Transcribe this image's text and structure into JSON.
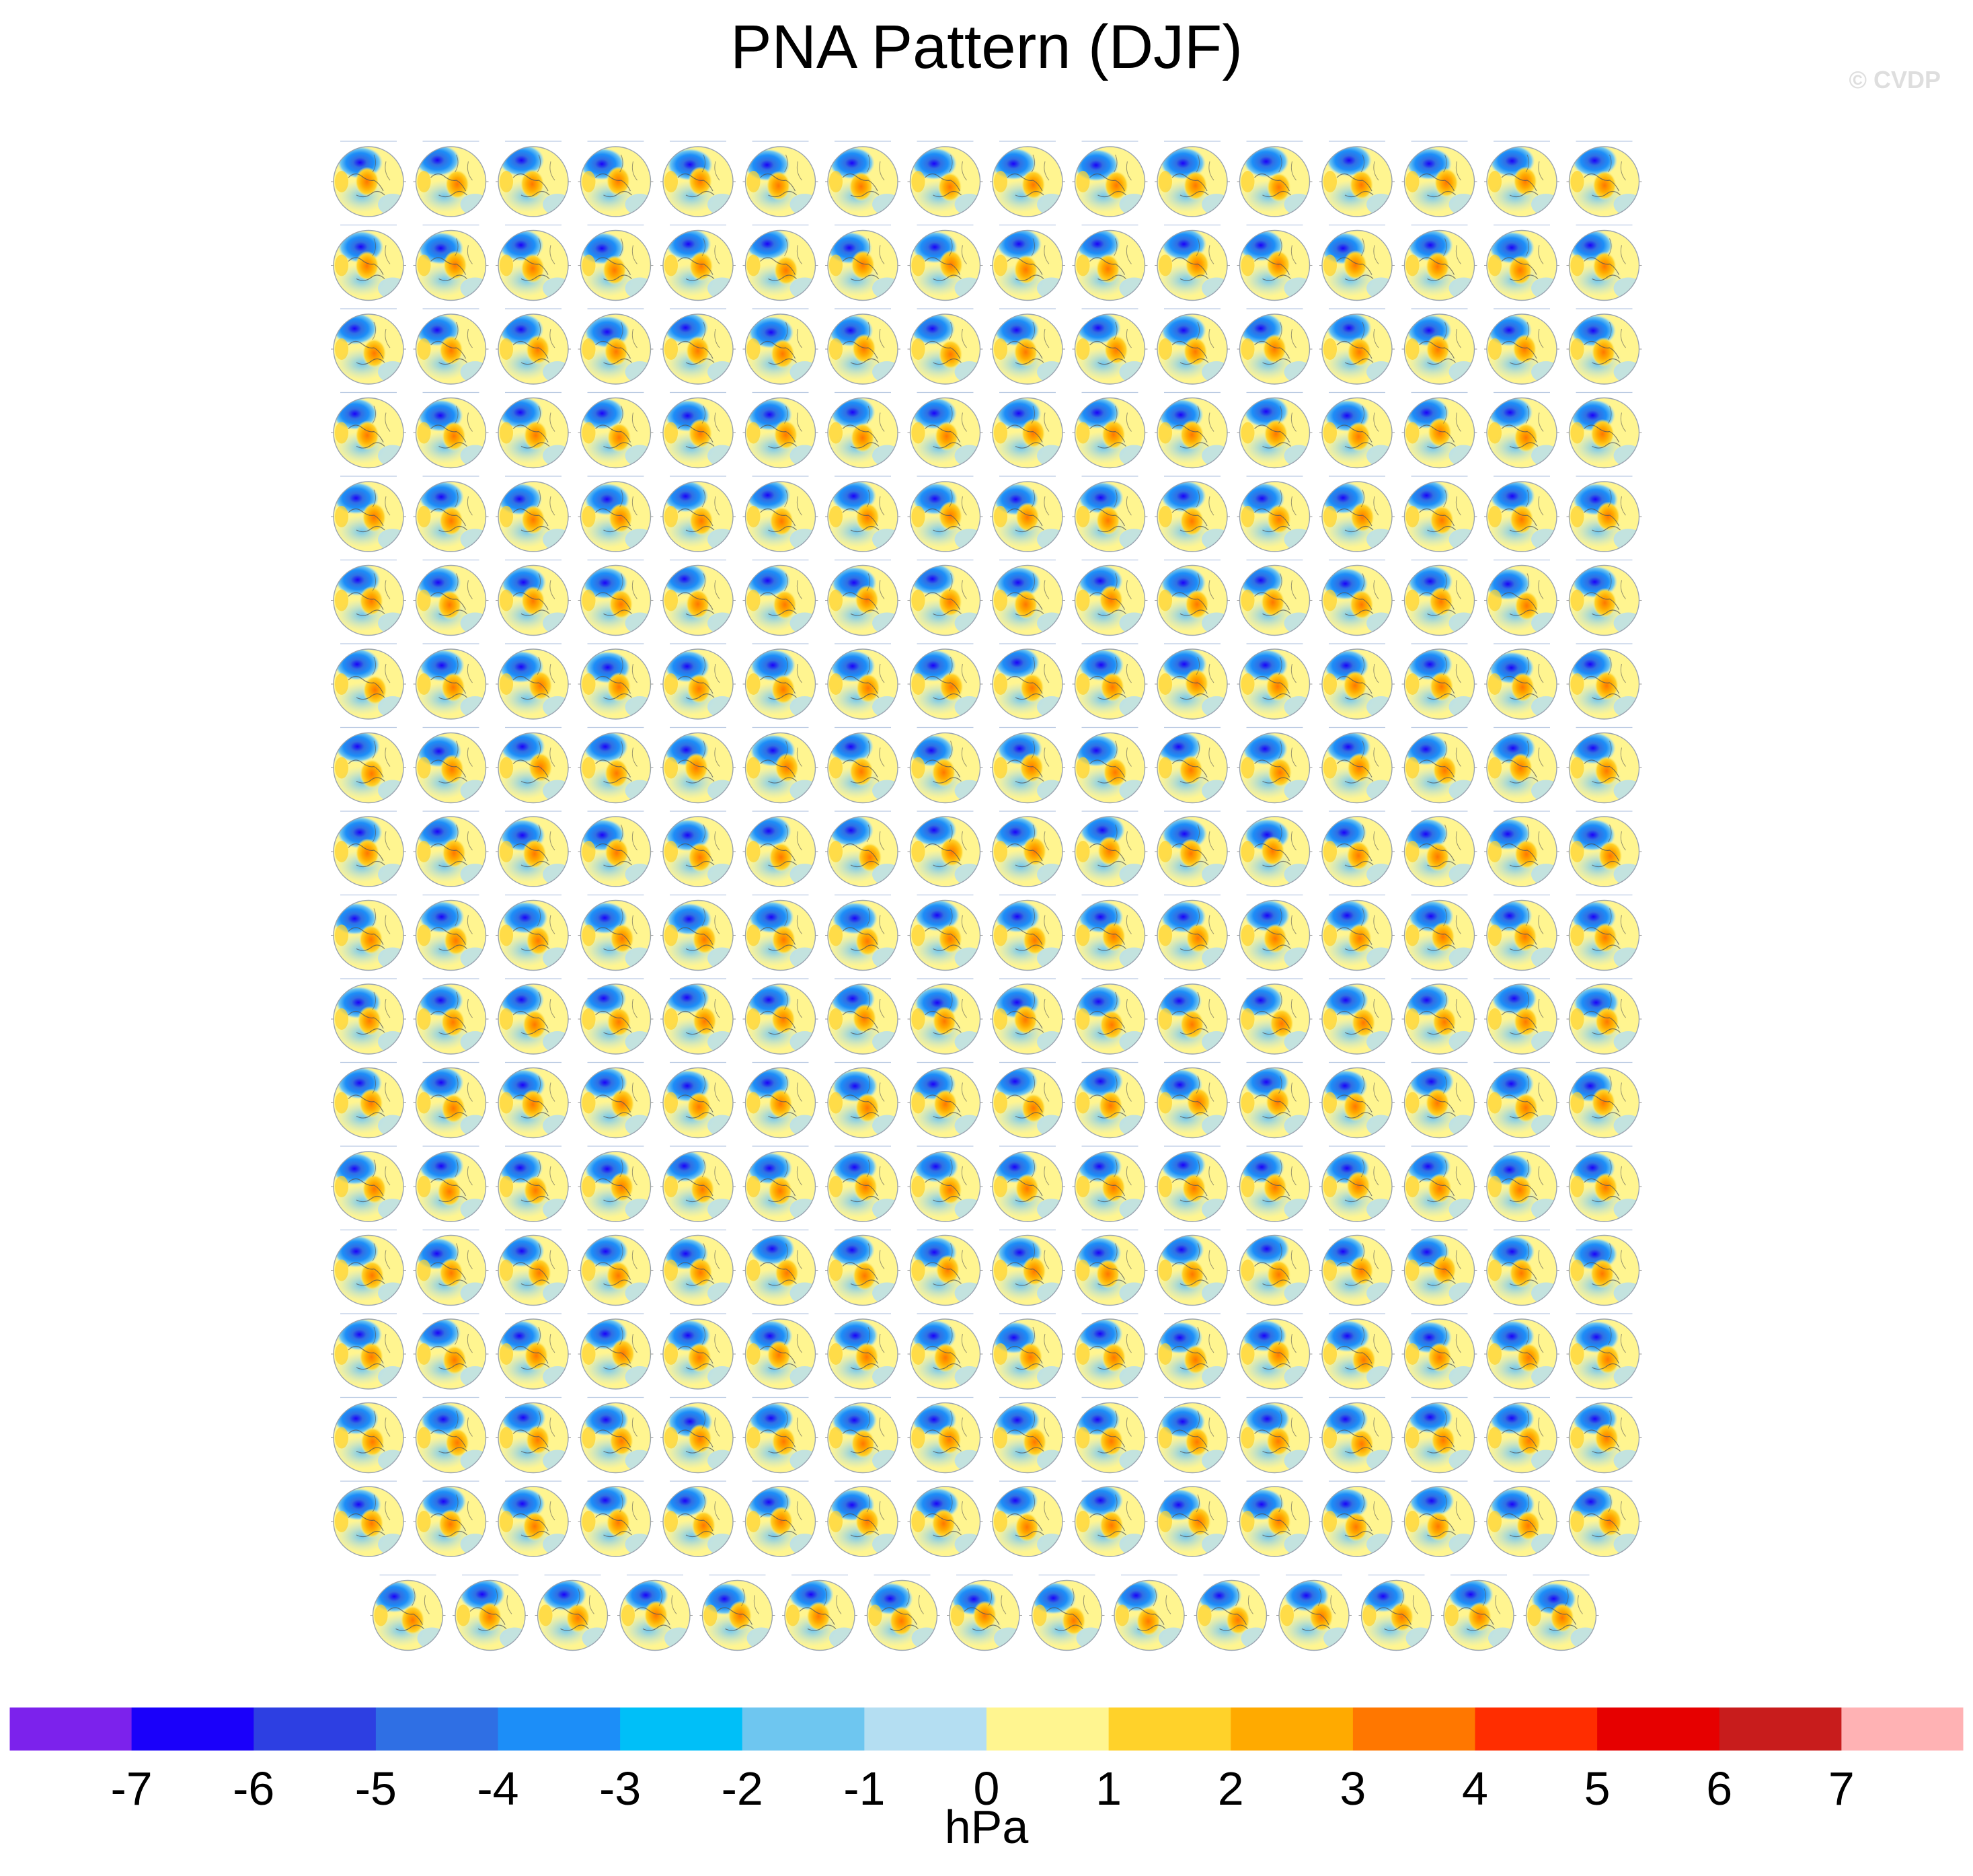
{
  "title": "PNA Pattern (DJF)",
  "watermark": "© CVDP",
  "chart_data": {
    "type": "heatmap",
    "title": "PNA Pattern (DJF)",
    "description_fields": {
      "panel_layout": {
        "full_rows": 17,
        "columns": 16,
        "last_row_panels": 15
      },
      "map_projection": "north-polar-stereographic"
    },
    "colorbar": {
      "label": "hPa",
      "orientation": "horizontal",
      "ticks": [
        "-7",
        "-6",
        "-5",
        "-4",
        "-3",
        "-2",
        "-1",
        "0",
        "1",
        "2",
        "3",
        "4",
        "5",
        "6",
        "7"
      ],
      "bins": [
        {
          "range": "< -7",
          "color": "#7c22ec"
        },
        {
          "range": "-7 to -6",
          "color": "#1a00fa"
        },
        {
          "range": "-6 to -5",
          "color": "#2d3fe2"
        },
        {
          "range": "-5 to -4",
          "color": "#2f6fe4"
        },
        {
          "range": "-4 to -3",
          "color": "#1c8ef8"
        },
        {
          "range": "-3 to -2",
          "color": "#00bff8"
        },
        {
          "range": "-2 to -1",
          "color": "#6ec6f0"
        },
        {
          "range": "-1 to 0",
          "color": "#b4def2"
        },
        {
          "range": "0 to 1",
          "color": "#fff590"
        },
        {
          "range": "1 to 2",
          "color": "#ffd22a"
        },
        {
          "range": "2 to 3",
          "color": "#ffaa00"
        },
        {
          "range": "3 to 4",
          "color": "#ff7700"
        },
        {
          "range": "4 to 5",
          "color": "#ff2d00"
        },
        {
          "range": "5 to 6",
          "color": "#e60000"
        },
        {
          "range": "6 to 7",
          "color": "#c81c1c"
        },
        {
          "range": "> 7",
          "color": "#ffb2b4"
        }
      ]
    }
  }
}
